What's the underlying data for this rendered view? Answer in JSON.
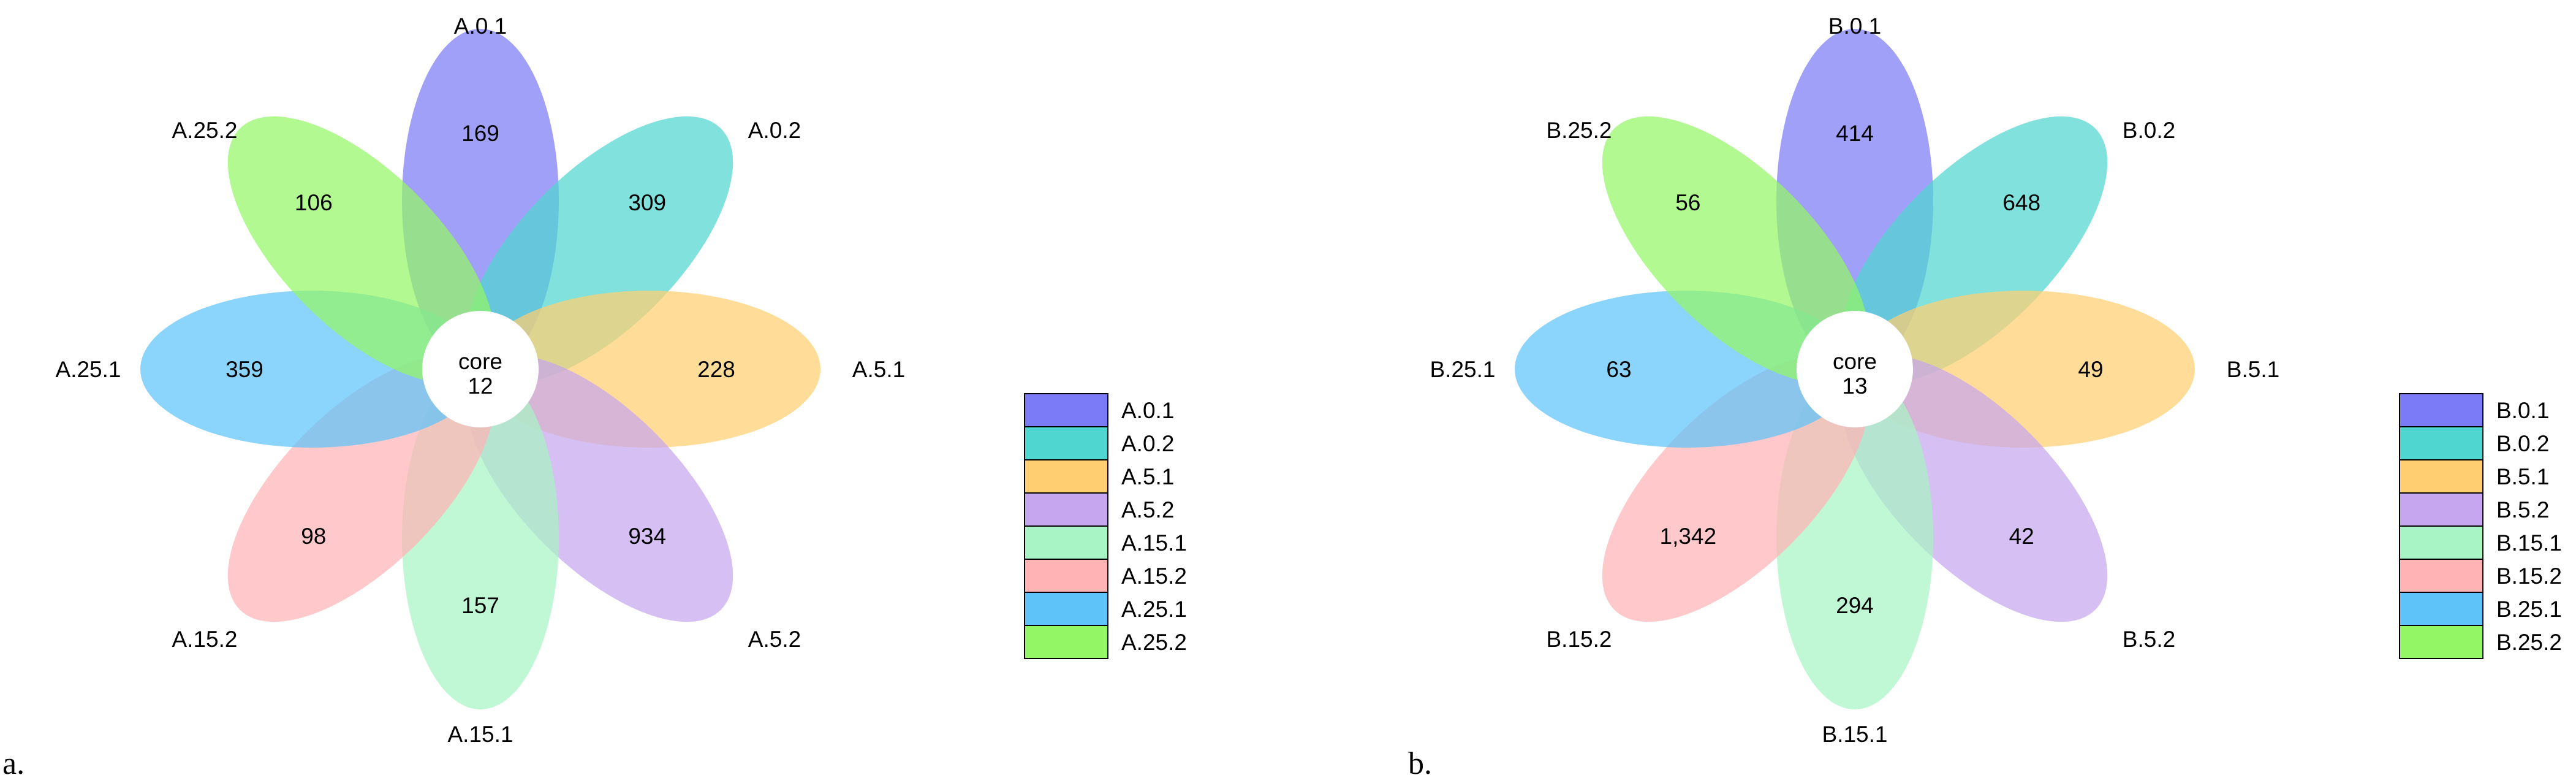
{
  "chart_data": [
    {
      "type": "flower-venn",
      "panel_label": "a.",
      "core_label": "core",
      "core_value": "12",
      "petals": [
        {
          "name": "A.0.1",
          "value": "169",
          "color": "#7B7BF7"
        },
        {
          "name": "A.0.2",
          "value": "309",
          "color": "#4FD6D0"
        },
        {
          "name": "A.5.1",
          "value": "228",
          "color": "#FFCE70"
        },
        {
          "name": "A.5.2",
          "value": "934",
          "color": "#C6A6EE"
        },
        {
          "name": "A.15.1",
          "value": "157",
          "color": "#A8F4C4"
        },
        {
          "name": "A.15.2",
          "value": "98",
          "color": "#FFB3B5"
        },
        {
          "name": "A.25.1",
          "value": "359",
          "color": "#5EC3F9"
        },
        {
          "name": "A.25.2",
          "value": "106",
          "color": "#93F765"
        }
      ]
    },
    {
      "type": "flower-venn",
      "panel_label": "b.",
      "core_label": "core",
      "core_value": "13",
      "petals": [
        {
          "name": "B.0.1",
          "value": "414",
          "color": "#7B7BF7"
        },
        {
          "name": "B.0.2",
          "value": "648",
          "color": "#4FD6D0"
        },
        {
          "name": "B.5.1",
          "value": "49",
          "color": "#FFCE70"
        },
        {
          "name": "B.5.2",
          "value": "42",
          "color": "#C6A6EE"
        },
        {
          "name": "B.15.1",
          "value": "294",
          "color": "#A8F4C4"
        },
        {
          "name": "B.15.2",
          "value": "1,342",
          "color": "#FFB3B5"
        },
        {
          "name": "B.25.1",
          "value": "63",
          "color": "#5EC3F9"
        },
        {
          "name": "B.25.2",
          "value": "56",
          "color": "#93F765"
        }
      ]
    }
  ]
}
